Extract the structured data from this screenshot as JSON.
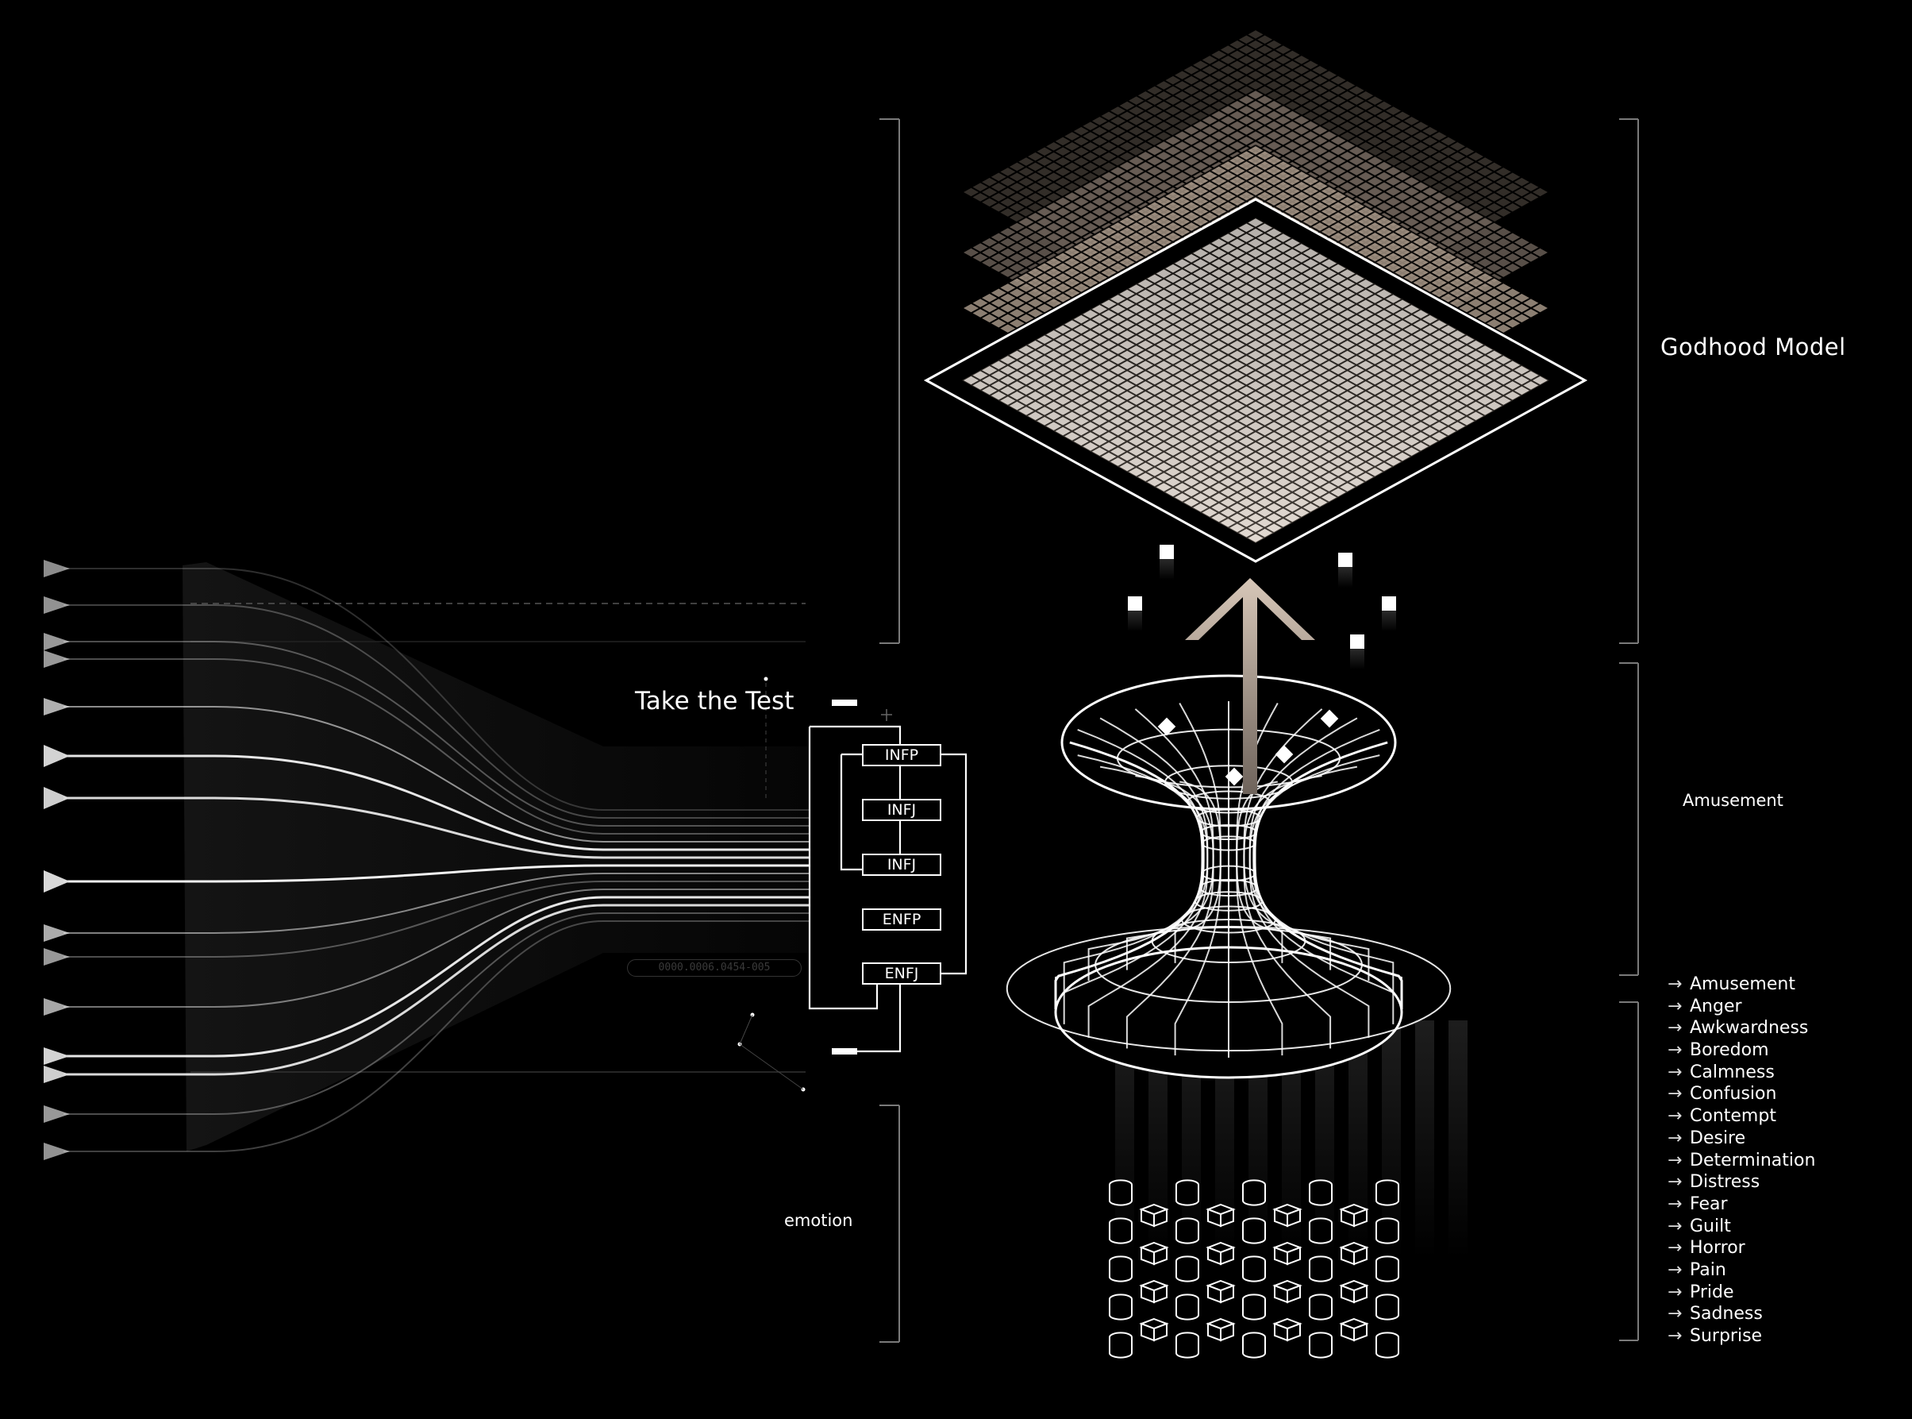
{
  "labels": {
    "model_title": "Godhood Model",
    "section_title": "Amusement",
    "bottom_title": "emotion",
    "test_title": "Take the Test",
    "code": "0000.0006.0454-005"
  },
  "mbti_types": [
    "INFP",
    "INFJ",
    "INFJ",
    "ENFP",
    "ENFJ"
  ],
  "emotions": [
    "Amusement",
    "Anger",
    "Awkwardness",
    "Boredom",
    "Calmness",
    "Confusion",
    "Contempt",
    "Desire",
    "Determination",
    "Distress",
    "Fear",
    "Guilt",
    "Horror",
    "Pain",
    "Pride",
    "Sadness",
    "Surprise"
  ],
  "list_arrow": "→",
  "colors": {
    "background": "#000000",
    "line": "#ffffff",
    "layer_tint": "#c9b8a8",
    "arrow": "#d8c8bb"
  },
  "icons": [
    "input-arrow-icon",
    "upward-arrow-icon",
    "wormhole-icon",
    "cube-icon",
    "cylinder-icon"
  ]
}
